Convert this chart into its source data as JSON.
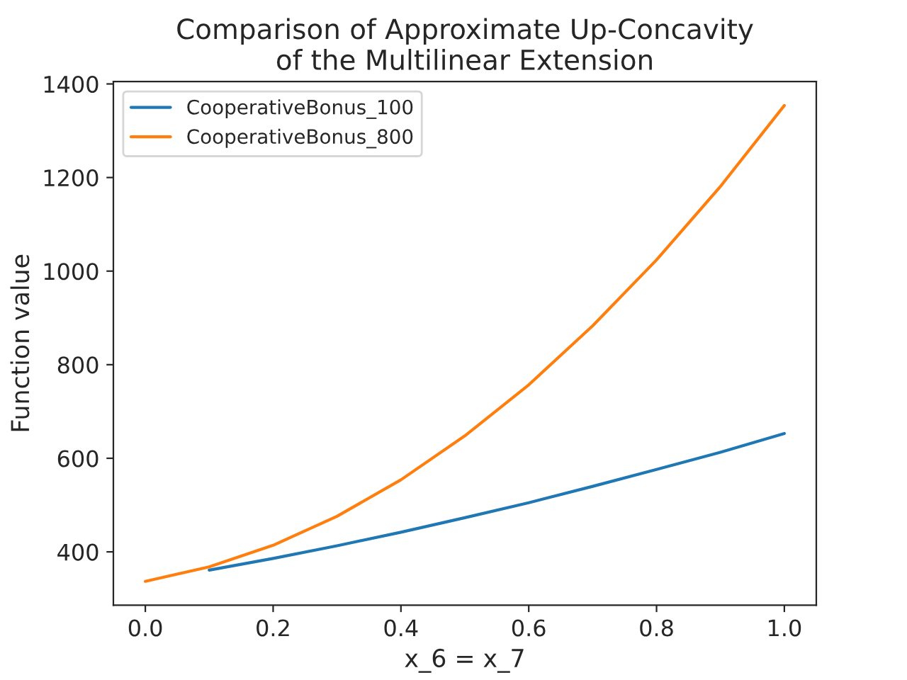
{
  "chart_data": {
    "type": "line",
    "title": "Comparison of Approximate Up-Concavity\nof the Multilinear Extension",
    "xlabel": "x_6 = x_7",
    "ylabel": "Function value",
    "x": [
      0,
      0.1,
      0.2,
      0.3,
      0.4,
      0.5,
      0.6,
      0.7,
      0.8,
      0.9,
      1.0
    ],
    "series": [
      {
        "name": "CooperativeBonus_100",
        "color": "#1f77b4",
        "values": [
          null,
          361,
          386,
          413,
          442,
          473,
          505,
          540,
          576,
          613,
          653
        ]
      },
      {
        "name": "CooperativeBonus_800",
        "color": "#ff7f0e",
        "values": [
          337,
          368,
          414,
          476,
          554,
          648,
          757,
          883,
          1024,
          1181,
          1354
        ]
      }
    ],
    "xlim": [
      -0.05,
      1.05
    ],
    "ylim": [
      286,
      1405
    ],
    "xticks": [
      {
        "value": 0,
        "label": "0.0"
      },
      0.2,
      0.4,
      0.6,
      0.8,
      {
        "value": 1.0,
        "label": "1.0"
      }
    ],
    "yticks": [
      400,
      600,
      800,
      1000,
      1200,
      1400
    ],
    "grid": false,
    "legend": "top left",
    "marker": "none",
    "line_style": "solid"
  }
}
